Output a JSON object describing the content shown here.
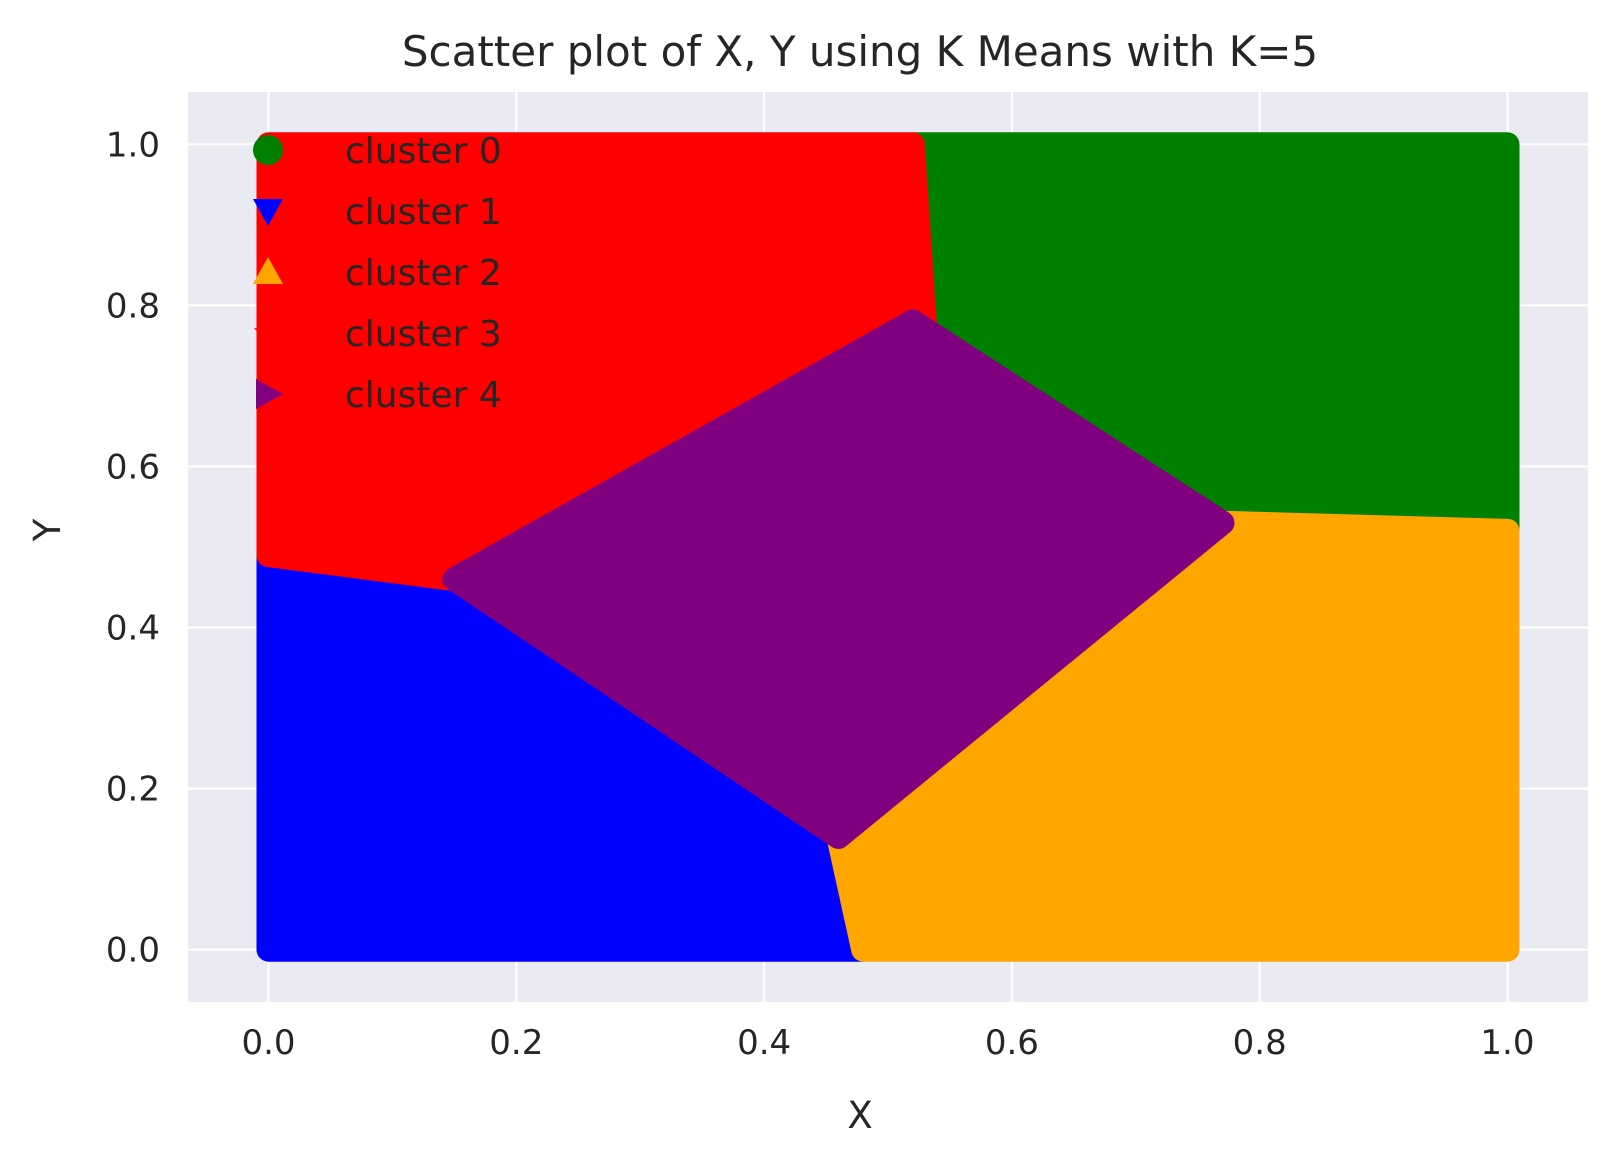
{
  "chart_data": {
    "type": "scatter",
    "title": "Scatter plot of X, Y using K Means with K=5",
    "xlabel": "X",
    "ylabel": "Y",
    "xlim": [
      -0.065,
      1.065
    ],
    "ylim": [
      -0.065,
      1.065
    ],
    "x_ticks": [
      "0.0",
      "0.2",
      "0.4",
      "0.6",
      "0.8",
      "1.0"
    ],
    "y_ticks": [
      "0.0",
      "0.2",
      "0.4",
      "0.6",
      "0.8",
      "1.0"
    ],
    "grid": true,
    "legend_position": "top-left",
    "series": [
      {
        "name": "cluster 0",
        "marker": "circle",
        "color": "#008000",
        "region": [
          [
            0.52,
            1.0
          ],
          [
            1.0,
            1.0
          ],
          [
            1.0,
            0.52
          ],
          [
            0.77,
            0.53
          ],
          [
            0.53,
            0.77
          ]
        ]
      },
      {
        "name": "cluster 1",
        "marker": "triangle-down",
        "color": "#0000ff",
        "region": [
          [
            0.0,
            0.49
          ],
          [
            0.15,
            0.46
          ],
          [
            0.46,
            0.14
          ],
          [
            0.48,
            0.0
          ],
          [
            0.0,
            0.0
          ]
        ]
      },
      {
        "name": "cluster 2",
        "marker": "triangle-up",
        "color": "#ffa500",
        "region": [
          [
            0.46,
            0.14
          ],
          [
            0.77,
            0.53
          ],
          [
            1.0,
            0.52
          ],
          [
            1.0,
            0.0
          ],
          [
            0.48,
            0.0
          ]
        ]
      },
      {
        "name": "cluster 3",
        "marker": "star",
        "color": "#ff0000",
        "region": [
          [
            0.0,
            1.0
          ],
          [
            0.52,
            1.0
          ],
          [
            0.53,
            0.77
          ],
          [
            0.15,
            0.46
          ],
          [
            0.0,
            0.49
          ]
        ]
      },
      {
        "name": "cluster 4",
        "marker": "triangle-right",
        "color": "#800080",
        "region": [
          [
            0.15,
            0.46
          ],
          [
            0.52,
            0.78
          ],
          [
            0.77,
            0.53
          ],
          [
            0.46,
            0.14
          ]
        ]
      }
    ]
  },
  "colors": {
    "plot_background": "#eaeaf2",
    "grid": "#ffffff",
    "text": "#262626"
  }
}
